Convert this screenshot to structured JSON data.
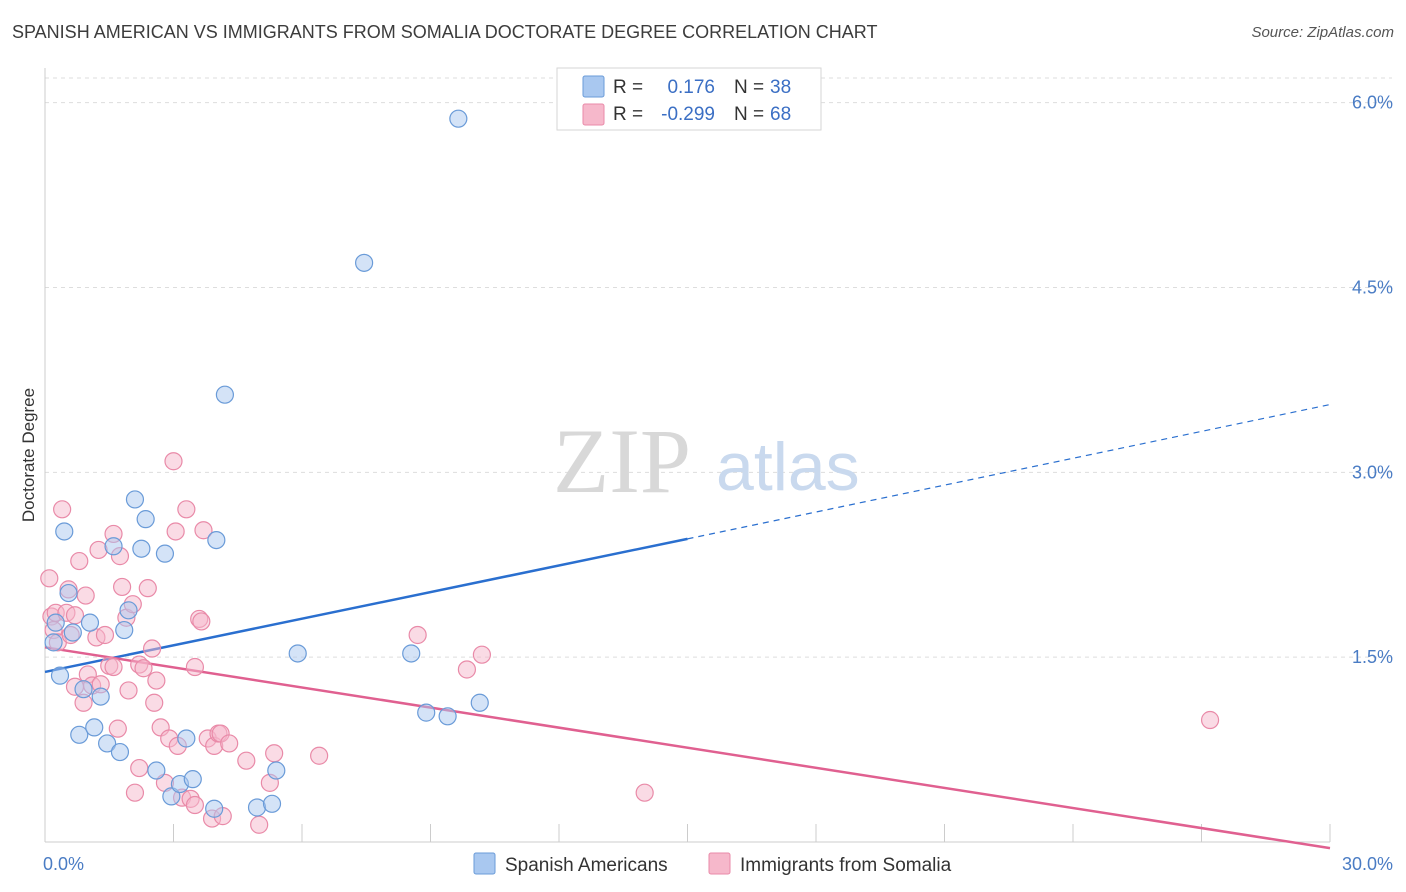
{
  "header": {
    "title": "SPANISH AMERICAN VS IMMIGRANTS FROM SOMALIA DOCTORATE DEGREE CORRELATION CHART",
    "source": "Source: ZipAtlas.com"
  },
  "watermark": {
    "zip": "ZIP",
    "atlas": "atlas"
  },
  "legend": {
    "r_label": "R =",
    "n_label": "N =",
    "rows": [
      {
        "r": "0.176",
        "n": "38"
      },
      {
        "r": "-0.299",
        "n": "68"
      }
    ]
  },
  "colors": {
    "blue_fill": "#a9c8f0",
    "blue_stroke": "#6a9bd8",
    "blue_line": "#2a6fcf",
    "pink_fill": "#f6b8cb",
    "pink_stroke": "#e98aa8",
    "pink_line": "#e06090",
    "grid": "#dddddd"
  },
  "chart_data": {
    "type": "scatter",
    "title": "SPANISH AMERICAN VS IMMIGRANTS FROM SOMALIA DOCTORATE DEGREE CORRELATION CHART",
    "xlabel": "",
    "ylabel": "Doctorate Degree",
    "xlim": [
      0,
      30
    ],
    "ylim": [
      0,
      6.2
    ],
    "x_tick_labels": [
      "0.0%",
      "30.0%"
    ],
    "y_ticks": [
      1.5,
      3.0,
      4.5,
      6.0
    ],
    "y_tick_labels": [
      "1.5%",
      "3.0%",
      "4.5%",
      "6.0%"
    ],
    "grid": true,
    "legend_position": "top-center",
    "series": [
      {
        "name": "Spanish Americans",
        "color": "blue",
        "points": [
          [
            0.2,
            1.62
          ],
          [
            0.35,
            1.35
          ],
          [
            0.45,
            2.52
          ],
          [
            0.55,
            2.02
          ],
          [
            0.65,
            1.7
          ],
          [
            0.8,
            0.87
          ],
          [
            0.9,
            1.24
          ],
          [
            1.05,
            1.78
          ],
          [
            1.15,
            0.93
          ],
          [
            1.3,
            1.18
          ],
          [
            1.45,
            0.8
          ],
          [
            1.6,
            2.4
          ],
          [
            1.75,
            0.73
          ],
          [
            1.85,
            1.72
          ],
          [
            1.95,
            1.88
          ],
          [
            2.1,
            2.78
          ],
          [
            2.25,
            2.38
          ],
          [
            2.35,
            2.62
          ],
          [
            2.6,
            0.58
          ],
          [
            2.8,
            2.34
          ],
          [
            2.95,
            0.37
          ],
          [
            3.15,
            0.47
          ],
          [
            3.3,
            0.84
          ],
          [
            3.45,
            0.51
          ],
          [
            3.95,
            0.27
          ],
          [
            4.0,
            2.45
          ],
          [
            4.2,
            3.63
          ],
          [
            4.95,
            0.28
          ],
          [
            5.3,
            0.31
          ],
          [
            5.4,
            0.58
          ],
          [
            5.9,
            1.53
          ],
          [
            7.45,
            4.7
          ],
          [
            8.55,
            1.53
          ],
          [
            8.9,
            1.05
          ],
          [
            9.4,
            1.02
          ],
          [
            9.65,
            5.87
          ],
          [
            10.15,
            1.13
          ],
          [
            0.25,
            1.78
          ]
        ]
      },
      {
        "name": "Immigrants from Somalia",
        "color": "pink",
        "points": [
          [
            0.1,
            2.14
          ],
          [
            0.15,
            1.83
          ],
          [
            0.2,
            1.72
          ],
          [
            0.25,
            1.86
          ],
          [
            0.3,
            1.62
          ],
          [
            0.4,
            2.7
          ],
          [
            0.5,
            1.86
          ],
          [
            0.55,
            2.05
          ],
          [
            0.6,
            1.68
          ],
          [
            0.7,
            1.84
          ],
          [
            0.8,
            2.28
          ],
          [
            0.9,
            1.13
          ],
          [
            0.95,
            2.0
          ],
          [
            1.0,
            1.36
          ],
          [
            1.1,
            1.27
          ],
          [
            1.2,
            1.66
          ],
          [
            1.25,
            2.37
          ],
          [
            1.3,
            1.28
          ],
          [
            1.4,
            1.68
          ],
          [
            1.5,
            1.43
          ],
          [
            1.6,
            2.5
          ],
          [
            1.7,
            0.92
          ],
          [
            1.75,
            2.32
          ],
          [
            1.8,
            2.07
          ],
          [
            1.9,
            1.82
          ],
          [
            1.95,
            1.23
          ],
          [
            2.05,
            1.93
          ],
          [
            2.1,
            0.4
          ],
          [
            2.2,
            1.44
          ],
          [
            2.3,
            1.41
          ],
          [
            2.4,
            2.06
          ],
          [
            2.5,
            1.57
          ],
          [
            2.55,
            1.13
          ],
          [
            2.6,
            1.31
          ],
          [
            2.7,
            0.93
          ],
          [
            2.8,
            0.48
          ],
          [
            2.9,
            0.84
          ],
          [
            3.0,
            3.09
          ],
          [
            3.05,
            2.52
          ],
          [
            3.1,
            0.78
          ],
          [
            3.2,
            0.36
          ],
          [
            3.3,
            2.7
          ],
          [
            3.4,
            0.35
          ],
          [
            3.5,
            0.3
          ],
          [
            3.6,
            1.81
          ],
          [
            3.65,
            1.79
          ],
          [
            3.7,
            2.53
          ],
          [
            3.8,
            0.84
          ],
          [
            3.9,
            0.19
          ],
          [
            3.95,
            0.78
          ],
          [
            4.05,
            0.88
          ],
          [
            4.1,
            0.88
          ],
          [
            4.15,
            0.21
          ],
          [
            4.3,
            0.8
          ],
          [
            4.7,
            0.66
          ],
          [
            5.0,
            0.14
          ],
          [
            5.35,
            0.72
          ],
          [
            5.25,
            0.48
          ],
          [
            6.4,
            0.7
          ],
          [
            8.7,
            1.68
          ],
          [
            9.85,
            1.4
          ],
          [
            10.2,
            1.52
          ],
          [
            14.0,
            0.4
          ],
          [
            27.2,
            0.99
          ],
          [
            3.5,
            1.42
          ],
          [
            1.6,
            1.42
          ],
          [
            0.7,
            1.26
          ],
          [
            2.2,
            0.6
          ]
        ]
      }
    ],
    "trend_lines": [
      {
        "series": "Spanish Americans",
        "solid": [
          [
            0,
            1.38
          ],
          [
            15,
            2.46
          ]
        ],
        "dashed": [
          [
            15,
            2.46
          ],
          [
            30,
            3.55
          ]
        ]
      },
      {
        "series": "Immigrants from Somalia",
        "solid": [
          [
            0,
            1.58
          ],
          [
            30,
            -0.05
          ]
        ]
      }
    ]
  }
}
